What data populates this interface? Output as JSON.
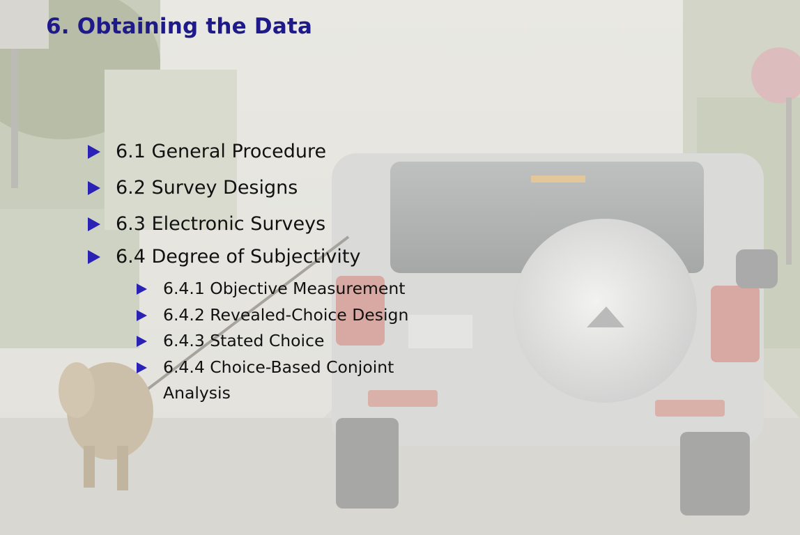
{
  "slide": {
    "title": "6. Obtaining the Data"
  },
  "toc": {
    "sections": [
      {
        "label": "6.1 General Procedure"
      },
      {
        "label": "6.2 Survey Designs"
      },
      {
        "label": "6.3 Electronic Surveys"
      },
      {
        "label": "6.4 Degree of Subjectivity"
      }
    ],
    "subsections": [
      {
        "label": "6.4.1 Objective Measurement"
      },
      {
        "label": "6.4.2 Revealed-Choice Design"
      },
      {
        "label": "6.4.3 Stated Choice"
      },
      {
        "label": "6.4.4 Choice-Based Conjoint Analysis"
      }
    ]
  },
  "colors": {
    "title": "#1f1a8a",
    "bullet": "#2a22b4",
    "text": "#111111"
  },
  "icons": {
    "bullet": "triangle-bullet-icon"
  }
}
